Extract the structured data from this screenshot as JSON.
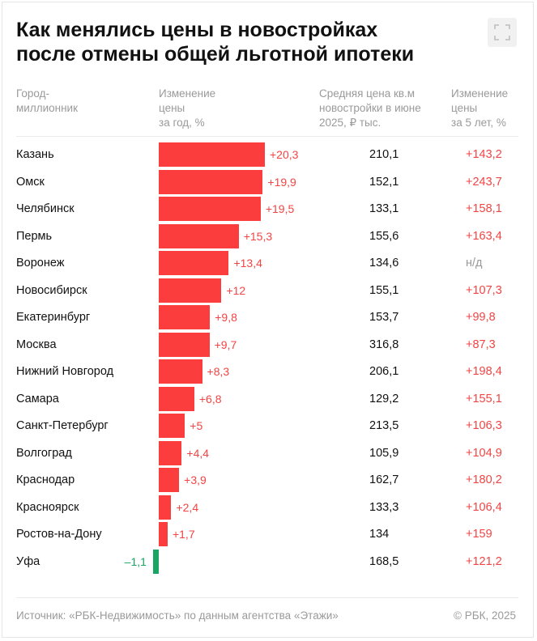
{
  "title_line1": "Как менялись цены в новостройках",
  "title_line2": "после отмены общей льготной ипотеки",
  "headers": {
    "city": "Город-\nмиллионник",
    "change_year": "Изменение\nцены\nза год, %",
    "avg_price": "Средняя цена кв.м\nновостройки в июне\n2025, ₽ тыс.",
    "change_5y": "Изменение\nцены\nза 5 лет, %"
  },
  "colors": {
    "positive": "#fb3d3d",
    "negative": "#1aa564",
    "positive_text": "#f24444",
    "na_text": "#9a9a9a"
  },
  "chart_data": {
    "type": "bar",
    "orientation": "horizontal",
    "categories": [
      "Казань",
      "Омск",
      "Челябинск",
      "Пермь",
      "Воронеж",
      "Новосибирск",
      "Екатеринбург",
      "Москва",
      "Нижний Новгород",
      "Самара",
      "Санкт-Петербург",
      "Волгоград",
      "Краснодар",
      "Красноярск",
      "Ростов-на-Дону",
      "Уфа"
    ],
    "values": [
      20.3,
      19.9,
      19.5,
      15.3,
      13.4,
      12,
      9.8,
      9.7,
      8.3,
      6.8,
      5,
      4.4,
      3.9,
      2.4,
      1.7,
      -1.1
    ],
    "value_labels": [
      "+20,3",
      "+19,9",
      "+19,5",
      "+15,3",
      "+13,4",
      "+12",
      "+9,8",
      "+9,7",
      "+8,3",
      "+6,8",
      "+5",
      "+4,4",
      "+3,9",
      "+2,4",
      "+1,7",
      "–1,1"
    ],
    "avg_price_labels": [
      "210,1",
      "152,1",
      "133,1",
      "155,6",
      "134,6",
      "155,1",
      "153,7",
      "316,8",
      "206,1",
      "129,2",
      "213,5",
      "105,9",
      "162,7",
      "133,3",
      "134",
      "168,5"
    ],
    "change_5y_labels": [
      "+143,2",
      "+243,7",
      "+158,1",
      "+163,4",
      "н/д",
      "+107,3",
      "+99,8",
      "+87,3",
      "+198,4",
      "+155,1",
      "+106,3",
      "+104,9",
      "+180,2",
      "+106,4",
      "+159",
      "+121,2"
    ]
  },
  "source": "Источник: «РБК-Недвижимость» по данным агентства «Этажи»",
  "copyright": "© РБК, 2025",
  "icons": {
    "expand": "expand-icon"
  }
}
